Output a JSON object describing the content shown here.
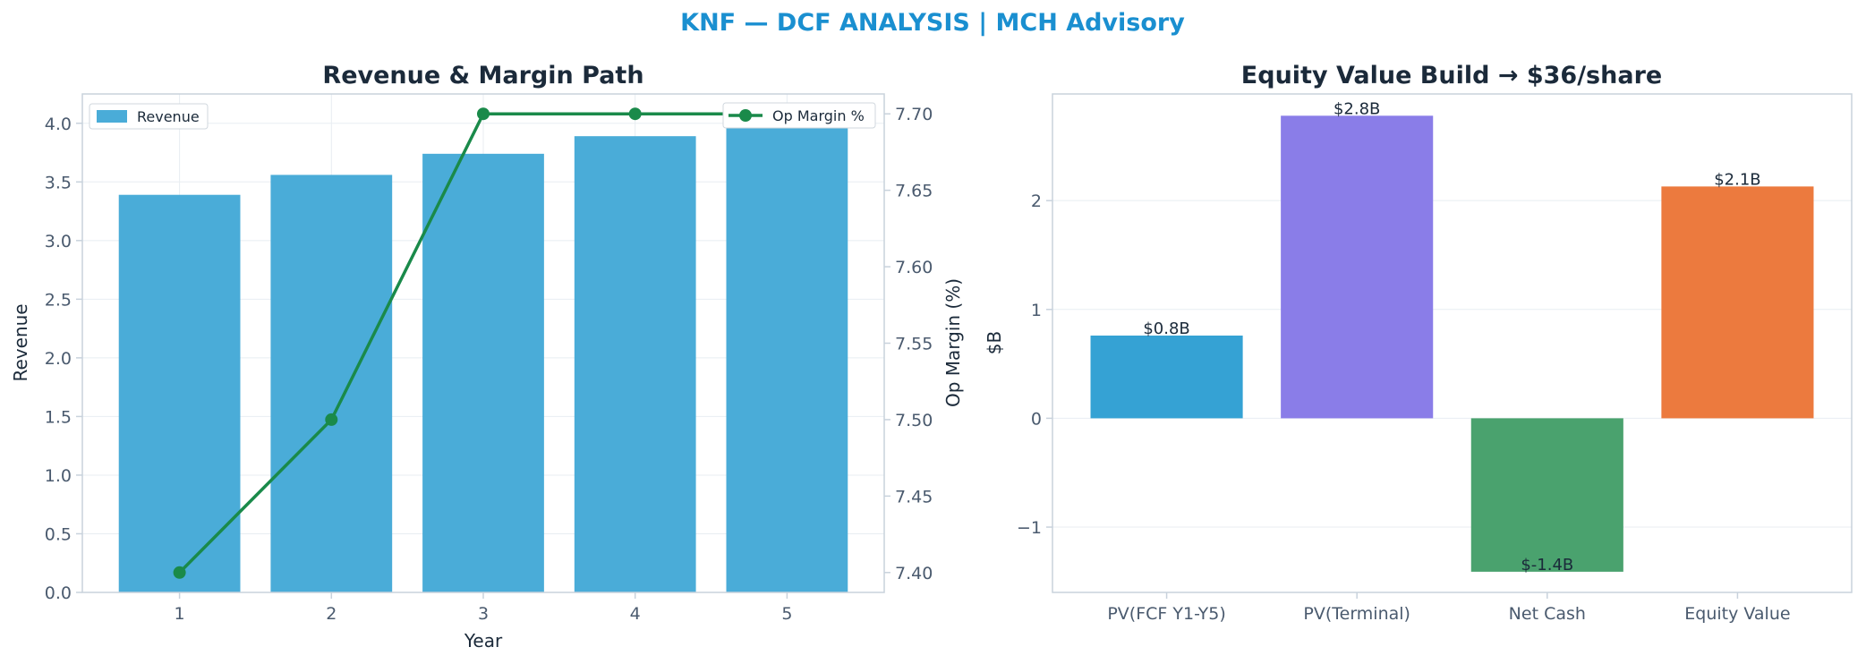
{
  "suptitle": "KNF — DCF ANALYSIS | MCH Advisory",
  "colors": {
    "title_accent": "#1a8fd0",
    "title_dark": "#1b2a3a",
    "axis_text": "#4a5a6e",
    "spine": "#c8d2dc",
    "grid": "#e8edf2",
    "revenue_bar": "#4aacd8",
    "margin_line": "#1a8a4a"
  },
  "chart_data": [
    {
      "type": "bar+line",
      "title": "Revenue & Margin Path",
      "xlabel": "Year",
      "ylabel": "Revenue",
      "y2label": "Op Margin (%)",
      "categories": [
        "1",
        "2",
        "3",
        "4",
        "5"
      ],
      "series": [
        {
          "name": "Revenue",
          "type": "bar",
          "axis": "left",
          "values": [
            3.39,
            3.56,
            3.74,
            3.89,
            4.04
          ]
        },
        {
          "name": "Op Margin %",
          "type": "line",
          "axis": "right",
          "values": [
            7.4,
            7.5,
            7.7,
            7.7,
            7.7
          ]
        }
      ],
      "ylim": [
        0,
        4.25
      ],
      "y_ticks": [
        "0.0",
        "0.5",
        "1.0",
        "1.5",
        "2.0",
        "2.5",
        "3.0",
        "3.5",
        "4.0"
      ],
      "y2lim": [
        7.387,
        7.713
      ],
      "y2_ticks": [
        "7.40",
        "7.45",
        "7.50",
        "7.55",
        "7.60",
        "7.65",
        "7.70"
      ],
      "legend_left": "upper-left",
      "legend_right": "upper-right",
      "grid": true
    },
    {
      "type": "bar",
      "title": "Equity Value Build → $36/share",
      "ylabel": "$B",
      "categories": [
        "PV(FCF Y1-Y5)",
        "PV(Terminal)",
        "Net Cash",
        "Equity Value"
      ],
      "values": [
        0.76,
        2.78,
        -1.41,
        2.13
      ],
      "data_labels": [
        "$0.8B",
        "$2.8B",
        "$-1.4B",
        "$2.1B"
      ],
      "bar_colors": [
        "#35a2d4",
        "#8a7de8",
        "#4aa26e",
        "#ec7a3e"
      ],
      "ylim": [
        -1.6,
        2.98
      ],
      "y_ticks": [
        "−1",
        "0",
        "1",
        "2"
      ],
      "grid": true
    }
  ]
}
